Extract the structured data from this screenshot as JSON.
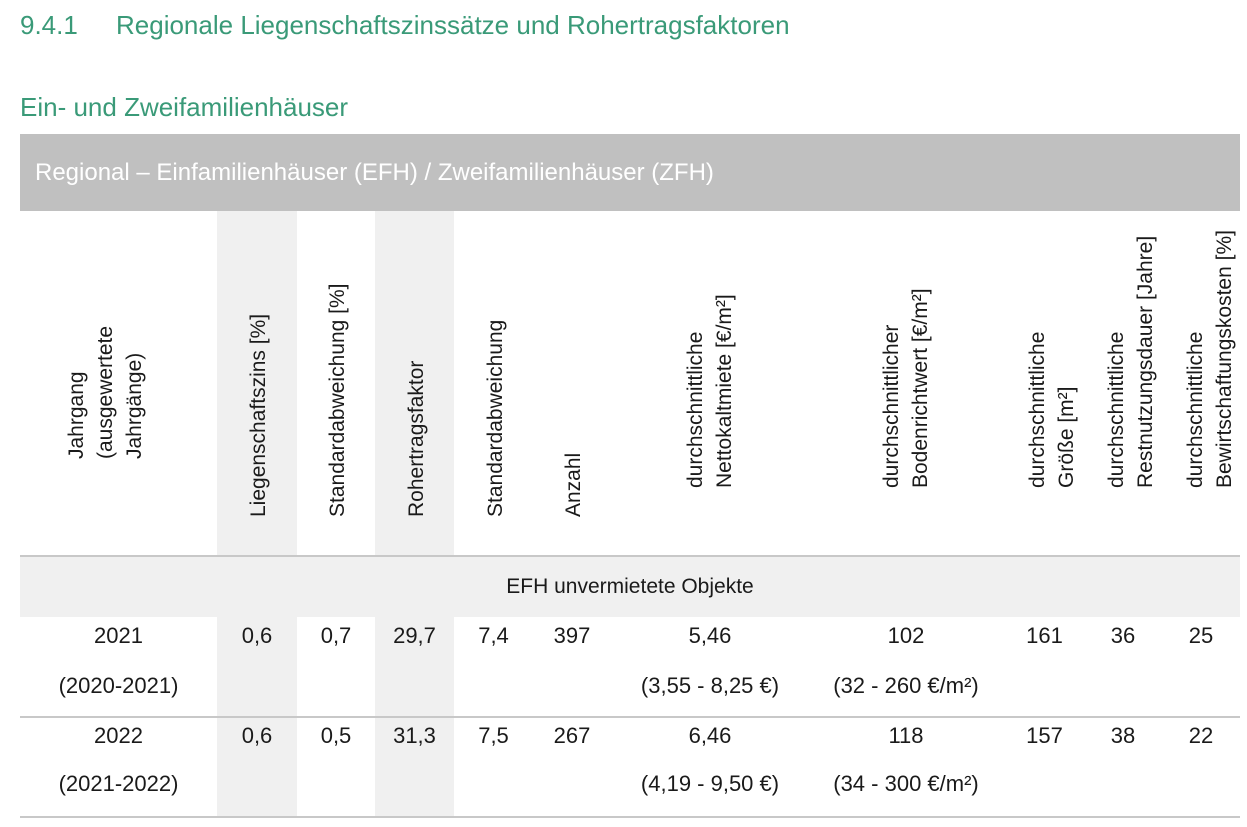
{
  "heading": {
    "number": "9.4.1",
    "title": "Regionale Liegenschaftszinssätze und Rohertragsfaktoren"
  },
  "subheading": "Ein- und Zweifamilienhäuser",
  "table": {
    "banner": "Regional – Einfamilienhäuser (EFH) / Zweifamilienhäuser (ZFH)",
    "columns": [
      "Jahrgang\n(ausgewertete\nJahrgänge)",
      "Liegenschaftszins [%]",
      "Standardabweichung [%]",
      "Rohertragsfaktor",
      "Standardabweichung",
      "Anzahl",
      "durchschnittliche\nNettokaltmiete [€/m²]",
      "durchschnittlicher\nBodenrichtwert [€/m²]",
      "durchschnittliche\nGröße [m²]",
      "durchschnittliche\nRestnutzungsdauer [Jahre]",
      "durchschnittliche\nBewirtschaftungskosten [%]"
    ],
    "section_label": "EFH unvermietete Objekte",
    "rows": [
      {
        "jahrgang": "2021",
        "range": "(2020-2021)",
        "zins": "0,6",
        "zins_sd": "0,7",
        "faktor": "29,7",
        "faktor_sd": "7,4",
        "anzahl": "397",
        "miete": "5,46",
        "miete_range": "(3,55 - 8,25 €)",
        "boden": "102",
        "boden_range": "(32 - 260 €/m²)",
        "groesse": "161",
        "rnd": "36",
        "bwk": "25"
      },
      {
        "jahrgang": "2022",
        "range": "(2021-2022)",
        "zins": "0,6",
        "zins_sd": "0,5",
        "faktor": "31,3",
        "faktor_sd": "7,5",
        "anzahl": "267",
        "miete": "6,46",
        "miete_range": "(4,19 - 9,50 €)",
        "boden": "118",
        "boden_range": "(34 - 300 €/m²)",
        "groesse": "157",
        "rnd": "38",
        "bwk": "22"
      }
    ]
  }
}
